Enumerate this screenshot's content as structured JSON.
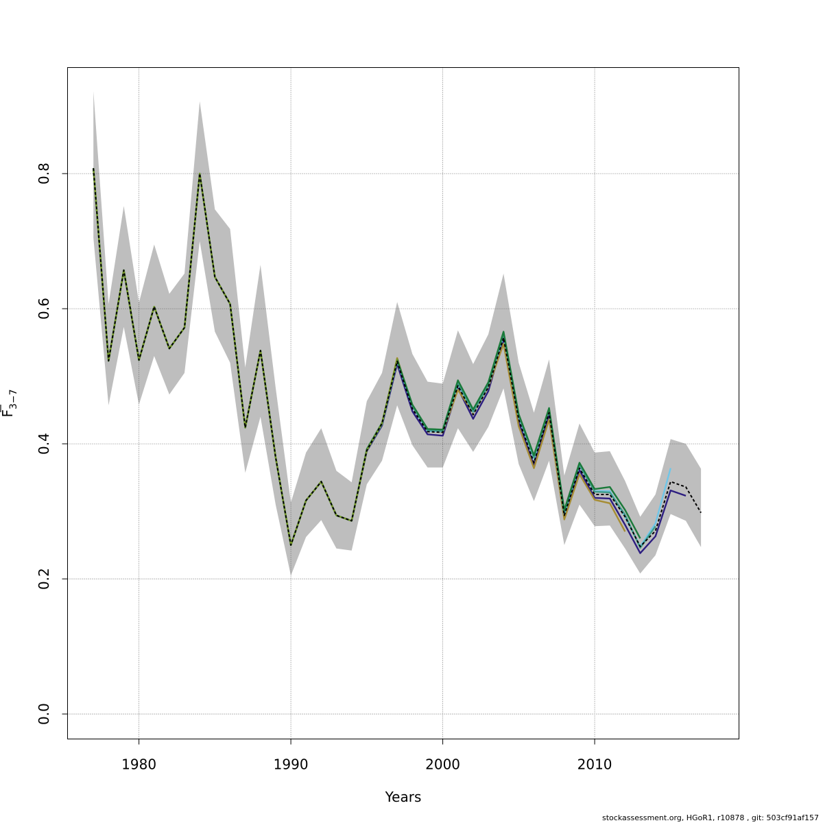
{
  "chart_data": {
    "type": "line",
    "xlabel": "Years",
    "ylabel_main": "F",
    "ylabel_sub": "3−7",
    "xlim": [
      1975.3,
      2019.5
    ],
    "ylim": [
      -0.037,
      0.957
    ],
    "x_ticks": [
      1980,
      1990,
      2000,
      2010
    ],
    "y_ticks": [
      0.0,
      0.2,
      0.4,
      0.6,
      0.8
    ],
    "x_tick_labels": [
      "1980",
      "1990",
      "2000",
      "2010"
    ],
    "y_tick_labels": [
      "0.0",
      "0.2",
      "0.4",
      "0.6",
      "0.8"
    ],
    "grid": true,
    "confidence_band": {
      "color": "#bebebe",
      "x": [
        1977,
        1978,
        1979,
        1980,
        1981,
        1982,
        1983,
        1984,
        1985,
        1986,
        1987,
        1988,
        1989,
        1990,
        1991,
        1992,
        1993,
        1994,
        1995,
        1996,
        1997,
        1998,
        1999,
        2000,
        2001,
        2002,
        2003,
        2004,
        2005,
        2006,
        2007,
        2008,
        2009,
        2010,
        2011,
        2012,
        2013,
        2014,
        2015,
        2016,
        2017
      ],
      "lower": [
        0.705,
        0.457,
        0.573,
        0.458,
        0.53,
        0.473,
        0.505,
        0.7,
        0.566,
        0.52,
        0.357,
        0.44,
        0.31,
        0.205,
        0.262,
        0.287,
        0.245,
        0.242,
        0.34,
        0.375,
        0.457,
        0.398,
        0.365,
        0.365,
        0.423,
        0.388,
        0.425,
        0.482,
        0.37,
        0.315,
        0.375,
        0.25,
        0.31,
        0.278,
        0.279,
        0.245,
        0.208,
        0.235,
        0.296,
        0.286,
        0.247
      ],
      "upper": [
        0.922,
        0.607,
        0.752,
        0.609,
        0.695,
        0.622,
        0.652,
        0.907,
        0.747,
        0.718,
        0.513,
        0.665,
        0.483,
        0.313,
        0.387,
        0.423,
        0.36,
        0.343,
        0.463,
        0.505,
        0.61,
        0.533,
        0.492,
        0.489,
        0.568,
        0.518,
        0.562,
        0.652,
        0.52,
        0.446,
        0.525,
        0.353,
        0.43,
        0.387,
        0.389,
        0.345,
        0.292,
        0.325,
        0.407,
        0.4,
        0.363
      ]
    },
    "series": [
      {
        "color": "#2d1e80",
        "dashed": false,
        "x": [
          1977,
          1978,
          1979,
          1980,
          1981,
          1982,
          1983,
          1984,
          1985,
          1986,
          1987,
          1988,
          1989,
          1990,
          1991,
          1992,
          1993,
          1994,
          1995,
          1996,
          1997,
          1998,
          1999,
          2000,
          2001,
          2002,
          2003,
          2004,
          2005,
          2006,
          2007,
          2008,
          2009,
          2010,
          2011,
          2012,
          2013,
          2014,
          2015,
          2016
        ],
        "values": [
          0.808,
          0.523,
          0.657,
          0.524,
          0.603,
          0.541,
          0.572,
          0.8,
          0.647,
          0.607,
          0.424,
          0.538,
          0.38,
          0.25,
          0.316,
          0.344,
          0.294,
          0.286,
          0.389,
          0.427,
          0.518,
          0.448,
          0.414,
          0.412,
          0.482,
          0.437,
          0.478,
          0.556,
          0.432,
          0.368,
          0.442,
          0.291,
          0.361,
          0.32,
          0.319,
          0.28,
          0.238,
          0.263,
          0.331,
          0.323
        ]
      },
      {
        "color": "#a68d34",
        "dashed": false,
        "x": [
          1977,
          1978,
          1979,
          1980,
          1981,
          1982,
          1983,
          1984,
          1985,
          1986,
          1987,
          1988,
          1989,
          1990,
          1991,
          1992,
          1993,
          1994,
          1995,
          1996,
          1997,
          1998,
          1999,
          2000,
          2001,
          2002,
          2003,
          2004,
          2005,
          2006,
          2007,
          2008,
          2009,
          2010,
          2011,
          2012
        ],
        "values": [
          0.808,
          0.523,
          0.657,
          0.524,
          0.603,
          0.541,
          0.572,
          0.8,
          0.647,
          0.607,
          0.424,
          0.538,
          0.38,
          0.25,
          0.316,
          0.344,
          0.294,
          0.286,
          0.391,
          0.43,
          0.527,
          0.455,
          0.42,
          0.417,
          0.48,
          0.446,
          0.484,
          0.548,
          0.426,
          0.364,
          0.436,
          0.288,
          0.355,
          0.317,
          0.312,
          0.27
        ]
      },
      {
        "color": "#6fc6e8",
        "dashed": false,
        "x": [
          1977,
          1978,
          1979,
          1980,
          1981,
          1982,
          1983,
          1984,
          1985,
          1986,
          1987,
          1988,
          1989,
          1990,
          1991,
          1992,
          1993,
          1994,
          1995,
          1996,
          1997,
          1998,
          1999,
          2000,
          2001,
          2002,
          2003,
          2004,
          2005,
          2006,
          2007,
          2008,
          2009,
          2010,
          2011,
          2012,
          2013,
          2014,
          2015
        ],
        "values": [
          0.808,
          0.523,
          0.657,
          0.524,
          0.603,
          0.541,
          0.572,
          0.8,
          0.647,
          0.607,
          0.424,
          0.538,
          0.38,
          0.25,
          0.316,
          0.344,
          0.294,
          0.286,
          0.39,
          0.429,
          0.522,
          0.455,
          0.419,
          0.418,
          0.488,
          0.447,
          0.486,
          0.56,
          0.44,
          0.378,
          0.45,
          0.296,
          0.368,
          0.33,
          0.33,
          0.292,
          0.248,
          0.282,
          0.364
        ]
      },
      {
        "color": "#3f9c8a",
        "dashed": false,
        "x": [
          1977,
          1978,
          1979,
          1980,
          1981,
          1982,
          1983,
          1984,
          1985,
          1986,
          1987,
          1988,
          1989,
          1990,
          1991,
          1992,
          1993,
          1994,
          1995,
          1996,
          1997,
          1998,
          1999,
          2000,
          2001,
          2002,
          2003,
          2004,
          2005,
          2006,
          2007,
          2008,
          2009,
          2010,
          2011,
          2012,
          2013,
          2014
        ],
        "values": [
          0.808,
          0.523,
          0.657,
          0.524,
          0.603,
          0.541,
          0.572,
          0.8,
          0.647,
          0.607,
          0.424,
          0.538,
          0.38,
          0.25,
          0.316,
          0.344,
          0.294,
          0.286,
          0.39,
          0.429,
          0.523,
          0.456,
          0.42,
          0.419,
          0.49,
          0.448,
          0.487,
          0.562,
          0.442,
          0.38,
          0.45,
          0.298,
          0.369,
          0.329,
          0.328,
          0.295,
          0.246,
          0.278
        ]
      },
      {
        "color": "#1a7a3a",
        "dashed": false,
        "x": [
          1977,
          1978,
          1979,
          1980,
          1981,
          1982,
          1983,
          1984,
          1985,
          1986,
          1987,
          1988,
          1989,
          1990,
          1991,
          1992,
          1993,
          1994,
          1995,
          1996,
          1997,
          1998,
          1999,
          2000,
          2001,
          2002,
          2003,
          2004,
          2005,
          2006,
          2007,
          2008,
          2009,
          2010,
          2011,
          2012,
          2013
        ],
        "values": [
          0.808,
          0.523,
          0.657,
          0.524,
          0.603,
          0.541,
          0.572,
          0.8,
          0.647,
          0.607,
          0.424,
          0.538,
          0.38,
          0.25,
          0.316,
          0.344,
          0.294,
          0.286,
          0.392,
          0.431,
          0.525,
          0.458,
          0.422,
          0.421,
          0.494,
          0.451,
          0.491,
          0.566,
          0.444,
          0.383,
          0.453,
          0.302,
          0.372,
          0.333,
          0.336,
          0.302,
          0.26
        ]
      },
      {
        "color": "#7a9a2a",
        "dashed": false,
        "x": [
          1977,
          1978,
          1979,
          1980,
          1981,
          1982,
          1983,
          1984,
          1985,
          1986,
          1987,
          1988,
          1989,
          1990,
          1991,
          1992,
          1993,
          1994,
          1995,
          1996,
          1997
        ],
        "values": [
          0.808,
          0.523,
          0.657,
          0.524,
          0.603,
          0.541,
          0.572,
          0.8,
          0.647,
          0.607,
          0.424,
          0.538,
          0.38,
          0.25,
          0.316,
          0.344,
          0.294,
          0.286,
          0.39,
          0.43,
          0.526
        ]
      },
      {
        "color": "#000000",
        "dashed": true,
        "x": [
          1977,
          1978,
          1979,
          1980,
          1981,
          1982,
          1983,
          1984,
          1985,
          1986,
          1987,
          1988,
          1989,
          1990,
          1991,
          1992,
          1993,
          1994,
          1995,
          1996,
          1997,
          1998,
          1999,
          2000,
          2001,
          2002,
          2003,
          2004,
          2005,
          2006,
          2007,
          2008,
          2009,
          2010,
          2011,
          2012,
          2013,
          2014,
          2015,
          2016,
          2017
        ],
        "values": [
          0.808,
          0.523,
          0.657,
          0.524,
          0.603,
          0.541,
          0.572,
          0.8,
          0.647,
          0.607,
          0.424,
          0.538,
          0.38,
          0.25,
          0.316,
          0.344,
          0.294,
          0.286,
          0.39,
          0.43,
          0.522,
          0.452,
          0.418,
          0.417,
          0.486,
          0.443,
          0.484,
          0.557,
          0.436,
          0.372,
          0.446,
          0.294,
          0.364,
          0.325,
          0.325,
          0.292,
          0.248,
          0.271,
          0.344,
          0.336,
          0.298
        ]
      }
    ]
  },
  "footer_text": "stockassessment.org, HGoR1, r10878 , git: 503cf91af157"
}
